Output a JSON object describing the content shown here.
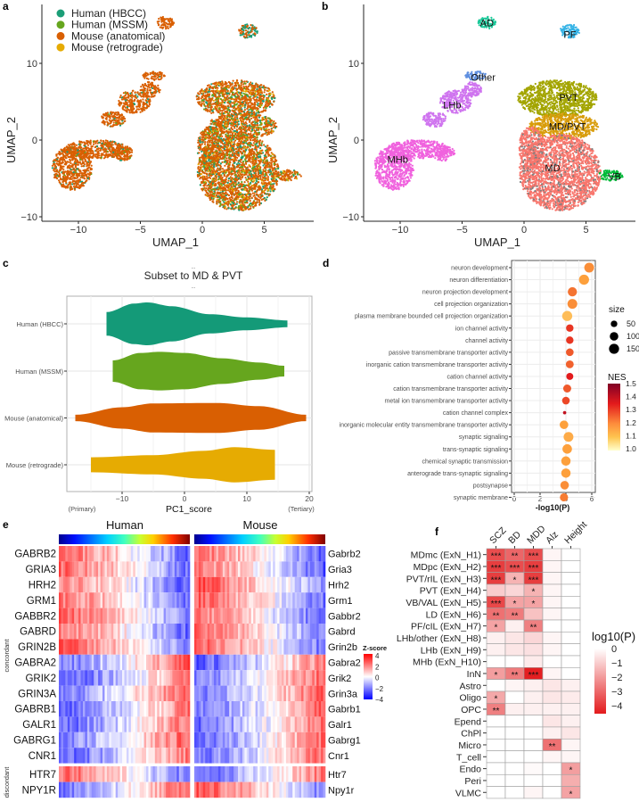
{
  "panel_letters": {
    "a": "a",
    "b": "b",
    "c": "c",
    "d": "d",
    "e": "e",
    "f": "f"
  },
  "chart_data": [
    {
      "id": "umap-dataset",
      "type": "scatter",
      "xlabel": "UMAP_1",
      "ylabel": "UMAP_2",
      "xticks": [
        -10,
        -5,
        0,
        5
      ],
      "yticks": [
        -10,
        0,
        10
      ],
      "xlim": [
        -13,
        9
      ],
      "ylim": [
        -10.6,
        17.5
      ],
      "legend_position": "top-left",
      "legend": [
        {
          "label": "Human (HBCC)",
          "color": "#1b9e77"
        },
        {
          "label": "Human (MSSM)",
          "color": "#66a61e"
        },
        {
          "label": "Mouse (anatomical)",
          "color": "#d95f02"
        },
        {
          "label": "Mouse (retrograde)",
          "color": "#e6ab02"
        }
      ],
      "composition": {
        "thalamus": {
          "#d95f02": 0.7,
          "#1b9e77": 0.13,
          "#66a61e": 0.1,
          "#e6ab02": 0.07
        },
        "habenula": {
          "#d95f02": 0.92,
          "#1b9e77": 0.06,
          "#66a61e": 0.02
        },
        "PF": {
          "#d95f02": 0.55,
          "#1b9e77": 0.45
        },
        "AD": {
          "#d95f02": 1.0
        }
      }
    },
    {
      "id": "umap-cluster",
      "type": "scatter",
      "xlabel": "UMAP_1",
      "ylabel": "UMAP_2",
      "xticks": [
        -10,
        -5,
        0,
        5
      ],
      "yticks": [
        -10,
        0,
        10
      ],
      "clusters": [
        {
          "label": "AD",
          "color": "#1dc99a",
          "group": "AD",
          "label_at": [
            -3,
            15.3
          ],
          "ellipses": [
            [
              -3,
              15.3,
              0.7,
              0.8
            ]
          ]
        },
        {
          "label": "PF",
          "color": "#35b3e6",
          "group": "PF",
          "label_at": [
            3.7,
            13.8
          ],
          "ellipses": [
            [
              3.7,
              14.2,
              0.8,
              0.9
            ]
          ]
        },
        {
          "label": "Other",
          "color": "#5f8fe0",
          "group": "habenula",
          "label_at": [
            -3.3,
            8.2
          ],
          "ellipses": [
            [
              -3.9,
              8.4,
              0.9,
              0.6
            ]
          ]
        },
        {
          "label": "LHb",
          "color": "#cf74ef",
          "group": "habenula",
          "label_at": [
            -5.8,
            4.6
          ],
          "ellipses": [
            [
              -5.5,
              5,
              1.3,
              1.5
            ],
            [
              -7.2,
              2.7,
              1.0,
              1.0
            ],
            [
              -4.2,
              6.6,
              0.8,
              1.0
            ]
          ]
        },
        {
          "label": "MHb",
          "color": "#f062de",
          "group": "habenula",
          "label_at": [
            -10.2,
            -2.5
          ],
          "ellipses": [
            [
              -10.5,
              -3.6,
              1.6,
              2.9
            ],
            [
              -8.6,
              -1.2,
              2.6,
              1.2
            ],
            [
              -6.5,
              -1.7,
              0.9,
              1.0
            ]
          ]
        },
        {
          "label": "PVT",
          "color": "#a3a500",
          "group": "thalamus",
          "label_at": [
            3.6,
            5.6
          ],
          "ellipses": [
            [
              2.7,
              5.4,
              3.2,
              2.4
            ]
          ]
        },
        {
          "label": "MD/PVT",
          "color": "#d89c0a",
          "group": "thalamus",
          "label_at": [
            3.5,
            1.8
          ],
          "ellipses": [
            [
              3.2,
              1.8,
              2.8,
              1.7
            ]
          ]
        },
        {
          "label": "MD",
          "color": "#f8766d",
          "group": "thalamus",
          "label_at": [
            2.3,
            -3.6
          ],
          "ellipses": [
            [
              2.9,
              -4.2,
              3.3,
              5.0
            ],
            [
              0.6,
              -1.0,
              1.0,
              2.8
            ]
          ]
        },
        {
          "label": "VB",
          "color": "#00ba38",
          "group": "thalamus",
          "label_at": [
            7.3,
            -4.7
          ],
          "ellipses": [
            [
              7.0,
              -4.6,
              1.0,
              0.7
            ]
          ]
        }
      ],
      "gray_fraction_MD": 0.15
    },
    {
      "id": "violin-pc1",
      "type": "violin",
      "title": "Subset to MD & PVT",
      "title_dots": "...",
      "xlabel": "PC1_score",
      "xticks": [
        -10,
        0,
        10,
        20
      ],
      "xlim": [
        -19,
        21
      ],
      "x_annotations": {
        "left": "(Primary)",
        "right": "(Tertiary)"
      },
      "categories": [
        "Human (HBCC)",
        "Human (MSSM)",
        "Mouse (anatomical)",
        "Mouse (retrograde)"
      ],
      "colors": [
        "#149a78",
        "#66a61e",
        "#d95f02",
        "#e6ab02"
      ],
      "density_profiles": [
        [
          [
            -12.5,
            0.55
          ],
          [
            -8,
            0.95
          ],
          [
            -6,
            1.0
          ],
          [
            -2,
            0.82
          ],
          [
            4,
            0.45
          ],
          [
            10,
            0.3
          ],
          [
            16.5,
            0.16
          ]
        ],
        [
          [
            -11.5,
            0.5
          ],
          [
            -7,
            0.85
          ],
          [
            -4,
            0.9
          ],
          [
            0,
            0.85
          ],
          [
            6,
            0.6
          ],
          [
            12,
            0.4
          ],
          [
            16,
            0.25
          ]
        ],
        [
          [
            -17.5,
            0.15
          ],
          [
            -10,
            0.5
          ],
          [
            -5,
            0.68
          ],
          [
            5,
            0.7
          ],
          [
            12,
            0.55
          ],
          [
            19.5,
            0.15
          ]
        ],
        [
          [
            -15,
            0.35
          ],
          [
            -5,
            0.45
          ],
          [
            3,
            0.65
          ],
          [
            8,
            0.82
          ],
          [
            14.5,
            0.7
          ]
        ]
      ]
    },
    {
      "id": "go-enrichment",
      "type": "scatter",
      "xlabel": "-log10(P)",
      "xticks": [
        0,
        2,
        4,
        6
      ],
      "xlim": [
        0,
        6.5
      ],
      "terms": [
        "neuron development",
        "neuron differentiation",
        "neuron projection development",
        "cell projection organization",
        "plasma membrane bounded cell projection organization",
        "ion channel activity",
        "channel activity",
        "passive transmembrane transporter activity",
        "inorganic cation transmembrane transporter activity",
        "cation channel activity",
        "cation transmembrane transporter activity",
        "metal ion transmembrane transporter activity",
        "cation channel complex",
        "inorganic molecular entity transmembrane transporter activity",
        "synaptic signaling",
        "trans-synaptic signaling",
        "chemical synaptic transmission",
        "anterograde trans-synaptic signaling",
        "postsynapse",
        "synaptic membrane"
      ],
      "neglog10p": [
        5.8,
        5.4,
        4.5,
        4.5,
        4.1,
        4.3,
        4.3,
        4.3,
        4.3,
        4.3,
        4.1,
        4.0,
        3.9,
        3.85,
        4.2,
        4.1,
        4.0,
        4.0,
        3.9,
        3.85
      ],
      "size": [
        140,
        150,
        120,
        140,
        150,
        70,
        70,
        75,
        80,
        60,
        85,
        75,
        5,
        100,
        140,
        130,
        125,
        125,
        100,
        90
      ],
      "nes": [
        1.22,
        1.2,
        1.25,
        1.22,
        1.15,
        1.32,
        1.32,
        1.28,
        1.27,
        1.35,
        1.28,
        1.3,
        1.4,
        1.2,
        1.18,
        1.2,
        1.2,
        1.2,
        1.22,
        1.24
      ],
      "size_legend": {
        "title": "size",
        "values": [
          50,
          100,
          150
        ]
      },
      "color_legend": {
        "title": "NES",
        "ticks": [
          "1.5",
          "1.4",
          "1.3",
          "1.2",
          "1.1",
          "1.0"
        ],
        "range": [
          1.0,
          1.5
        ]
      }
    },
    {
      "id": "gene-heatmap",
      "type": "heatmap",
      "columns_title": [
        "Human",
        "Mouse"
      ],
      "human_genes": [
        "GABRB2",
        "GRIA3",
        "HRH2",
        "GRM1",
        "GABBR2",
        "GABRD",
        "GRIN2B",
        "GABRA2",
        "GRIK2",
        "GRIN3A",
        "GABRB1",
        "GALR1",
        "GABRG1",
        "CNR1",
        "HTR7",
        "NPY1R"
      ],
      "mouse_genes": [
        "Gabrb2",
        "Gria3",
        "Hrh2",
        "Grm1",
        "Gabbr2",
        "Gabrd",
        "Grin2b",
        "Gabra2",
        "Grik2",
        "Grin3a",
        "Gabrb1",
        "Galr1",
        "Gabrg1",
        "Cnr1",
        "Htr7",
        "Npy1r"
      ],
      "human_trend": [
        -1,
        -1,
        -1,
        -1,
        -1,
        -1,
        -1,
        1,
        1,
        1,
        1,
        1,
        1,
        1,
        -1,
        1
      ],
      "mouse_trend": [
        -1,
        -1,
        -1,
        -1,
        -1,
        -1,
        -1,
        1,
        1,
        1,
        1,
        1,
        1,
        1,
        1,
        -1
      ],
      "groups": [
        {
          "label": "concordant",
          "rows": 14
        },
        {
          "label": "discordant",
          "rows": 2
        }
      ],
      "legend": {
        "title": "Z-score",
        "ticks": [
          "4",
          "2",
          "0",
          "−2",
          "−4"
        ],
        "range": [
          -4,
          4
        ]
      }
    },
    {
      "id": "gwas-enrichment",
      "type": "heatmap",
      "columns": [
        "SCZ",
        "BD",
        "MDD",
        "Alz",
        "Height"
      ],
      "rows": [
        "MDmc (ExN_H1)",
        "MDpc (ExN_H2)",
        "PVT/rIL (ExN_H3)",
        "PVT (ExN_H4)",
        "VB/VAL (ExN_H5)",
        "LD (ExN_H6)",
        "PF/cIL (ExN_H7)",
        "LHb/other (ExN_H8)",
        "LHb (ExN_H9)",
        "MHb (ExN_H10)",
        "InN",
        "Astro",
        "Oligo",
        "OPC",
        "Epend",
        "ChPl",
        "Micro",
        "T_cell",
        "Endo",
        "Peri",
        "VLMC"
      ],
      "log10p": [
        [
          -3.5,
          -3.0,
          -3.5,
          -0.2,
          0
        ],
        [
          -3.8,
          -3.5,
          -3.8,
          -0.2,
          0
        ],
        [
          -3.8,
          -1.5,
          -3.8,
          -0.2,
          0
        ],
        [
          -1.0,
          -0.8,
          -1.5,
          -0.2,
          0
        ],
        [
          -3.6,
          -1.8,
          -1.8,
          -0.2,
          0
        ],
        [
          -2.8,
          -2.6,
          -1.2,
          -0.2,
          0
        ],
        [
          -1.8,
          -0.3,
          -2.5,
          0,
          0
        ],
        [
          -0.3,
          -0.5,
          -0.8,
          -0.2,
          0
        ],
        [
          -0.3,
          -0.5,
          -0.6,
          -0.2,
          0
        ],
        [
          0,
          0,
          -0.4,
          0,
          0
        ],
        [
          -1.9,
          -2.6,
          -4.4,
          -0.2,
          0
        ],
        [
          0,
          -0.2,
          -0.3,
          -0.5,
          -0.3
        ],
        [
          -1.7,
          0,
          -0.3,
          -0.5,
          -0.4
        ],
        [
          -2.5,
          -0.3,
          -0.3,
          -0.3,
          -0.3
        ],
        [
          0,
          0,
          0,
          -0.5,
          -0.3
        ],
        [
          0,
          0,
          0,
          -0.3,
          -0.5
        ],
        [
          0,
          0,
          0,
          -2.8,
          -0.2
        ],
        [
          0,
          0,
          0,
          -0.2,
          -0.2
        ],
        [
          0,
          0,
          -0.1,
          0,
          -1.9
        ],
        [
          0,
          0,
          0,
          0,
          -1.6
        ],
        [
          0,
          0,
          -0.2,
          0,
          -1.8
        ]
      ],
      "stars": [
        [
          "***",
          "**",
          "***",
          "",
          ""
        ],
        [
          "***",
          "***",
          "***",
          "",
          ""
        ],
        [
          "***",
          "*",
          "***",
          "",
          ""
        ],
        [
          "",
          "",
          "*",
          "",
          ""
        ],
        [
          "***",
          "*",
          "*",
          "",
          ""
        ],
        [
          "**",
          "**",
          "",
          "",
          ""
        ],
        [
          "*",
          "",
          "**",
          "",
          ""
        ],
        [
          "",
          "",
          "",
          "",
          ""
        ],
        [
          "",
          "",
          "",
          "",
          ""
        ],
        [
          "",
          "",
          "",
          "",
          ""
        ],
        [
          "*",
          "**",
          "***",
          "",
          ""
        ],
        [
          "",
          "",
          "",
          "",
          ""
        ],
        [
          "*",
          "",
          "",
          "",
          ""
        ],
        [
          "**",
          "",
          "",
          "",
          ""
        ],
        [
          "",
          "",
          "",
          "",
          ""
        ],
        [
          "",
          "",
          "",
          "",
          ""
        ],
        [
          "",
          "",
          "",
          "**",
          ""
        ],
        [
          "",
          "",
          "",
          "",
          ""
        ],
        [
          "",
          "",
          "",
          "",
          "*"
        ],
        [
          "",
          "",
          "",
          "",
          ""
        ],
        [
          "",
          "",
          "",
          "",
          "*"
        ]
      ],
      "legend": {
        "title": "log10(P)",
        "ticks": [
          "0",
          "−1",
          "−2",
          "−3",
          "−4"
        ],
        "range": [
          -4.5,
          0
        ],
        "low_color": "#e31a1c"
      }
    }
  ]
}
